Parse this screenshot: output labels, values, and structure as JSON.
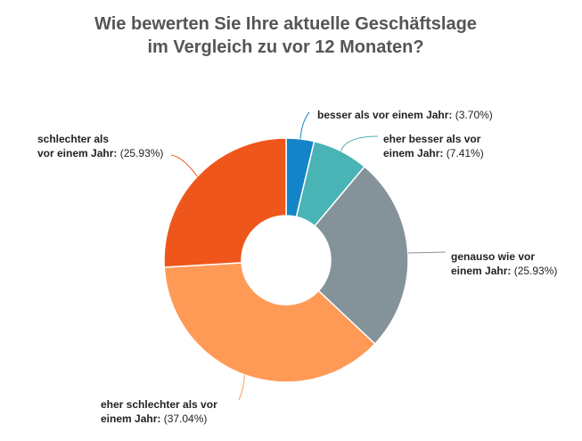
{
  "chart_data": {
    "type": "pie",
    "subtype": "donut",
    "title": [
      "Wie bewerten Sie Ihre aktuelle Geschäftslage",
      "im Vergleich zu vor 12 Monaten?"
    ],
    "slices": [
      {
        "label_lines": [
          "besser als vor einem Jahr:"
        ],
        "percent_text": "(3.70%)",
        "value": 3.7,
        "color": "#1484c8"
      },
      {
        "label_lines": [
          "eher besser als vor",
          "einem Jahr:"
        ],
        "percent_text": "(7.41%)",
        "value": 7.41,
        "color": "#4ab3b5"
      },
      {
        "label_lines": [
          "genauso wie vor",
          "einem Jahr:"
        ],
        "percent_text": "(25.93%)",
        "value": 25.93,
        "color": "#84929a"
      },
      {
        "label_lines": [
          "eher schlechter als vor",
          "einem Jahr:"
        ],
        "percent_text": "(37.04%)",
        "value": 37.04,
        "color": "#ff9a56"
      },
      {
        "label_lines": [
          "schlechter als",
          "vor einem Jahr:"
        ],
        "percent_text": "(25.93%)",
        "value": 25.93,
        "color": "#ef561b"
      }
    ],
    "legend": "none (labels placed beside slices)"
  }
}
